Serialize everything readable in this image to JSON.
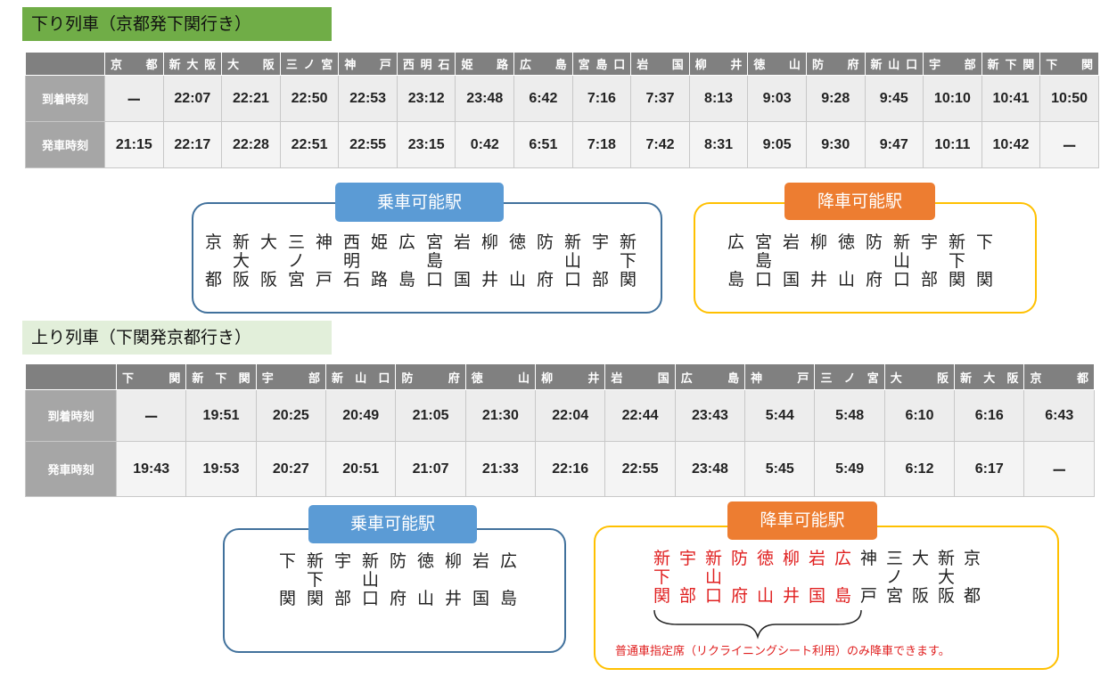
{
  "down": {
    "title": "下り列車（京都発下関行き）",
    "stations": [
      "京都",
      "新大阪",
      "大阪",
      "三ノ宮",
      "神戸",
      "西明石",
      "姫路",
      "広島",
      "宮島口",
      "岩国",
      "柳井",
      "徳山",
      "防府",
      "新山口",
      "宇部",
      "新下関",
      "下関"
    ],
    "rows": [
      {
        "label": "到着時刻",
        "times": [
          "ー",
          "22:07",
          "22:21",
          "22:50",
          "22:53",
          "23:12",
          "23:48",
          "6:42",
          "7:16",
          "7:37",
          "8:13",
          "9:03",
          "9:28",
          "9:45",
          "10:10",
          "10:41",
          "10:50"
        ]
      },
      {
        "label": "発車時刻",
        "times": [
          "21:15",
          "22:17",
          "22:28",
          "22:51",
          "22:55",
          "23:15",
          "0:42",
          "6:51",
          "7:18",
          "7:42",
          "8:31",
          "9:05",
          "9:30",
          "9:47",
          "10:11",
          "10:42",
          "ー"
        ]
      }
    ],
    "board_label": "乗車可能駅",
    "board_stations": [
      "京都",
      "新大阪",
      "大阪",
      "三ノ宮",
      "神戸",
      "西明石",
      "姫路",
      "広島",
      "宮島口",
      "岩国",
      "柳井",
      "徳山",
      "防府",
      "新山口",
      "宇部",
      "新下関"
    ],
    "alight_label": "降車可能駅",
    "alight_stations": [
      "広島",
      "宮島口",
      "岩国",
      "柳井",
      "徳山",
      "防府",
      "新山口",
      "宇部",
      "新下関",
      "下関"
    ]
  },
  "up": {
    "title": "上り列車（下関発京都行き）",
    "stations": [
      "下関",
      "新下関",
      "宇部",
      "新山口",
      "防府",
      "徳山",
      "柳井",
      "岩国",
      "広島",
      "神戸",
      "三ノ宮",
      "大阪",
      "新大阪",
      "京都"
    ],
    "rows": [
      {
        "label": "到着時刻",
        "times": [
          "ー",
          "19:51",
          "20:25",
          "20:49",
          "21:05",
          "21:30",
          "22:04",
          "22:44",
          "23:43",
          "5:44",
          "5:48",
          "6:10",
          "6:16",
          "6:43"
        ]
      },
      {
        "label": "発車時刻",
        "times": [
          "19:43",
          "19:53",
          "20:27",
          "20:51",
          "21:07",
          "21:33",
          "22:16",
          "22:55",
          "23:48",
          "5:45",
          "5:49",
          "6:12",
          "6:17",
          "ー"
        ]
      }
    ],
    "board_label": "乗車可能駅",
    "board_stations": [
      "下関",
      "新下関",
      "宇部",
      "新山口",
      "防府",
      "徳山",
      "柳井",
      "岩国",
      "広島"
    ],
    "alight_label": "降車可能駅",
    "alight_stations": [
      "新下関",
      "宇部",
      "新山口",
      "防府",
      "徳山",
      "柳井",
      "岩国",
      "広島",
      "神戸",
      "三ノ宮",
      "大阪",
      "新大阪",
      "京都"
    ],
    "alight_red_count": 8,
    "note": "普通車指定席（リクライニングシート利用）のみ降車できます。"
  },
  "colors": {
    "red": "#e02020",
    "blue": "#5b9bd5",
    "orange": "#ed7d31",
    "yellow": "#ffc000",
    "green": "#70ad47"
  }
}
